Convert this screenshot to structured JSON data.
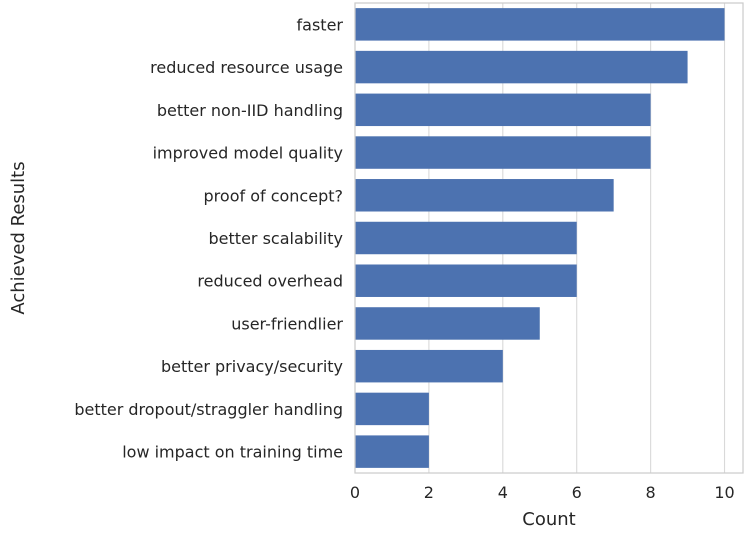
{
  "chart_data": {
    "type": "bar",
    "orientation": "horizontal",
    "categories": [
      "faster",
      "reduced resource usage",
      "better non-IID handling",
      "improved model quality",
      "proof of concept?",
      "better scalability",
      "reduced overhead",
      "user-friendlier",
      "better privacy/security",
      "better dropout/straggler handling",
      "low impact on training time"
    ],
    "values": [
      10,
      9,
      8,
      8,
      7,
      6,
      6,
      5,
      4,
      2,
      2
    ],
    "xlabel": "Count",
    "ylabel": "Achieved Results",
    "xlim": [
      0,
      10.5
    ],
    "xticks": [
      "0",
      "2",
      "4",
      "6",
      "8",
      "10"
    ],
    "grid": "vertical",
    "bar_color": "#4c72b0",
    "grid_color": "#d9d9d9",
    "text_color": "#262626"
  }
}
